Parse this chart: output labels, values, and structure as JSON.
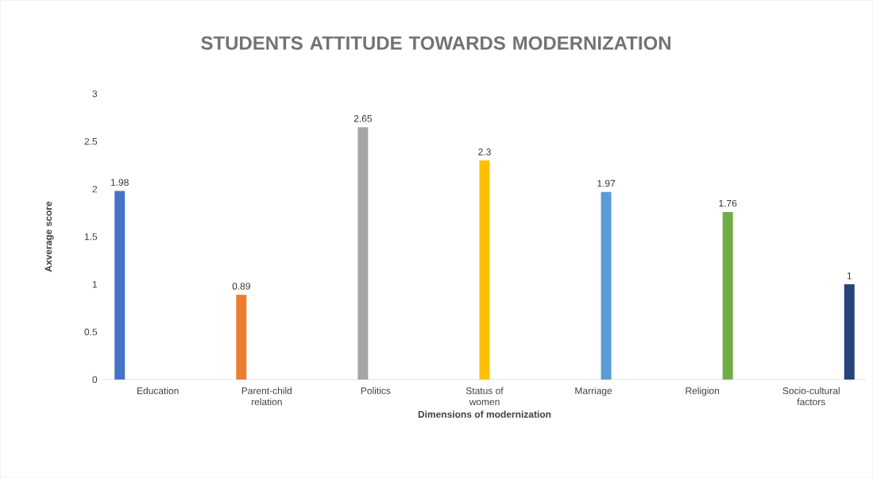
{
  "chart_data": {
    "type": "bar",
    "title": "STUDENTS ATTITUDE TOWARDS MODERNIZATION",
    "xlabel": "Dimensions of modernization",
    "ylabel": "Axverage score",
    "categories": [
      "Education",
      "Parent-child relation",
      "Politics",
      "Status of women",
      "Marriage",
      "Religion",
      "Socio-cultural factors"
    ],
    "values": [
      1.98,
      0.89,
      2.65,
      2.3,
      1.97,
      1.76,
      1
    ],
    "colors": [
      "#4472c4",
      "#ed7d31",
      "#a5a5a5",
      "#ffc000",
      "#5b9bd5",
      "#70ad47",
      "#264478"
    ],
    "ylim": [
      0,
      3
    ],
    "yticks": [
      0,
      0.5,
      1,
      1.5,
      2,
      2.5,
      3
    ],
    "data_labels": true
  }
}
